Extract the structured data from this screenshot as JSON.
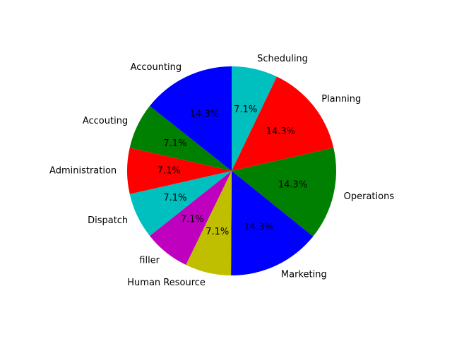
{
  "chart_data": {
    "type": "pie",
    "title": "",
    "start_angle_deg": 90,
    "direction": "clockwise",
    "slices": [
      {
        "label": "Scheduling",
        "value": 7.1,
        "pct_text": "7.1%",
        "color": "#00bfbf"
      },
      {
        "label": "Planning",
        "value": 14.3,
        "pct_text": "14.3%",
        "color": "#ff0000"
      },
      {
        "label": "Operations",
        "value": 14.3,
        "pct_text": "14.3%",
        "color": "#008000"
      },
      {
        "label": "Marketing",
        "value": 14.3,
        "pct_text": "14.3%",
        "color": "#0000ff"
      },
      {
        "label": "Human Resource",
        "value": 7.1,
        "pct_text": "7.1%",
        "color": "#bfbf00"
      },
      {
        "label": "filler",
        "value": 7.1,
        "pct_text": "7.1%",
        "color": "#bf00bf"
      },
      {
        "label": "Dispatch",
        "value": 7.1,
        "pct_text": "7.1%",
        "color": "#00bfbf"
      },
      {
        "label": "Administration",
        "value": 7.1,
        "pct_text": "7.1%",
        "color": "#ff0000"
      },
      {
        "label": "Accouting",
        "value": 7.1,
        "pct_text": "7.1%",
        "color": "#008000"
      },
      {
        "label": "Accounting",
        "value": 14.3,
        "pct_text": "14.3%",
        "color": "#0000ff"
      }
    ]
  }
}
